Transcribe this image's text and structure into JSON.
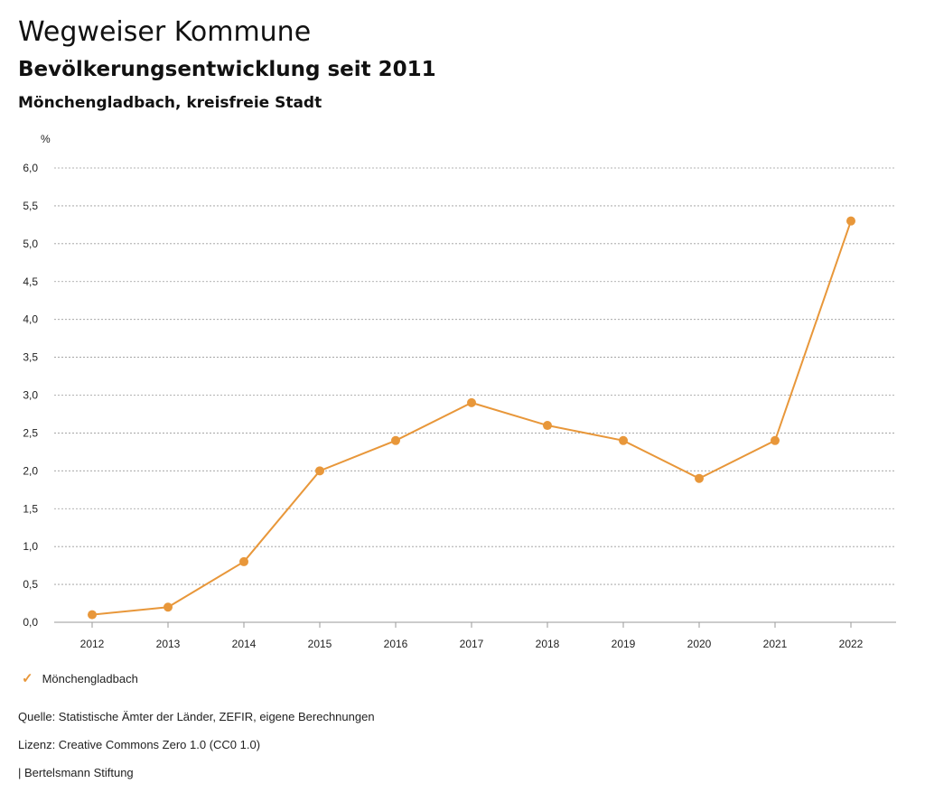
{
  "header": {
    "title": "Wegweiser Kommune",
    "subtitle": "Bevölkerungsentwicklung seit 2011",
    "region": "Mönchengladbach, kreisfreie Stadt"
  },
  "chart_data": {
    "type": "line",
    "unit_label": "%",
    "x": [
      "2012",
      "2013",
      "2014",
      "2015",
      "2016",
      "2017",
      "2018",
      "2019",
      "2020",
      "2021",
      "2022"
    ],
    "series": [
      {
        "name": "Mönchengladbach",
        "color": "#e8973a",
        "values": [
          0.1,
          0.2,
          0.8,
          2.0,
          2.4,
          2.9,
          2.6,
          2.4,
          1.9,
          2.4,
          5.3
        ]
      }
    ],
    "ylim": [
      0,
      6
    ],
    "yticks": [
      "0,0",
      "0,5",
      "1,0",
      "1,5",
      "2,0",
      "2,5",
      "3,0",
      "3,5",
      "4,0",
      "4,5",
      "5,0",
      "5,5",
      "6,0"
    ],
    "grid": true,
    "legend_position": "bottom-left"
  },
  "legend": {
    "label": "Mönchengladbach",
    "icon": "check-icon"
  },
  "footer": {
    "source": "Quelle: Statistische Ämter der Länder, ZEFIR, eigene Berechnungen",
    "license": "Lizenz: Creative Commons Zero 1.0 (CC0 1.0)",
    "publisher": "| Bertelsmann Stiftung"
  }
}
